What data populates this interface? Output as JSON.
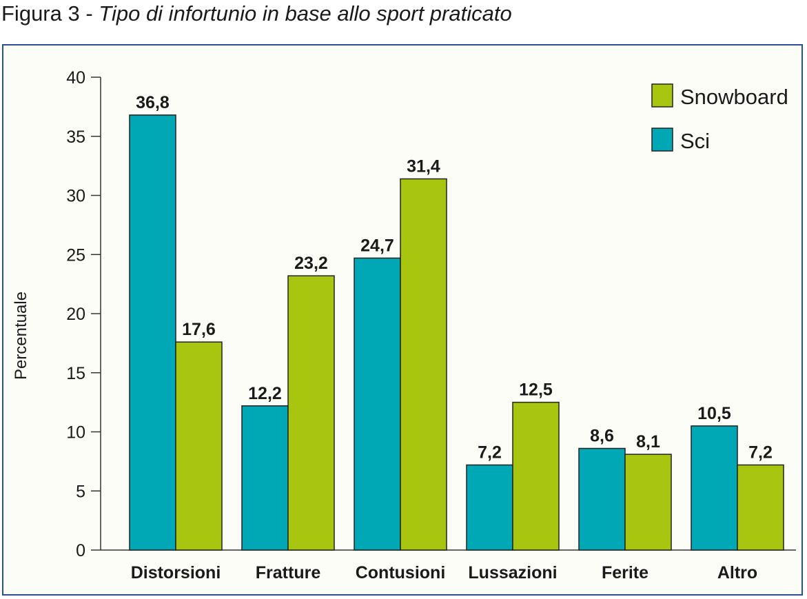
{
  "figure": {
    "label": "Figura 3",
    "separator": " - ",
    "subtitle": "Tipo di infortunio in base allo sport praticato"
  },
  "colors": {
    "sci": "#00a7b5",
    "snowboard": "#a8c60f",
    "frame": "#2a4f9a"
  },
  "chart_data": {
    "type": "bar",
    "categories": [
      "Distorsioni",
      "Fratture",
      "Contusioni",
      "Lussazioni",
      "Ferite",
      "Altro"
    ],
    "series": [
      {
        "name": "Sci",
        "values": [
          36.8,
          12.2,
          24.7,
          7.2,
          8.6,
          10.5
        ],
        "labels": [
          "36,8",
          "12,2",
          "24,7",
          "7,2",
          "8,6",
          "10,5"
        ]
      },
      {
        "name": "Snowboard",
        "values": [
          17.6,
          23.2,
          31.4,
          12.5,
          8.1,
          7.2
        ],
        "labels": [
          "17,6",
          "23,2",
          "31,4",
          "12,5",
          "8,1",
          "7,2"
        ]
      }
    ],
    "legend": [
      "Snowboard",
      "Sci"
    ],
    "legend_position": "top-right",
    "ylabel": "Percentuale",
    "xlabel": "",
    "ylim": [
      0,
      40
    ],
    "yticks": [
      0,
      5,
      10,
      15,
      20,
      25,
      30,
      35,
      40
    ],
    "grid": false
  }
}
